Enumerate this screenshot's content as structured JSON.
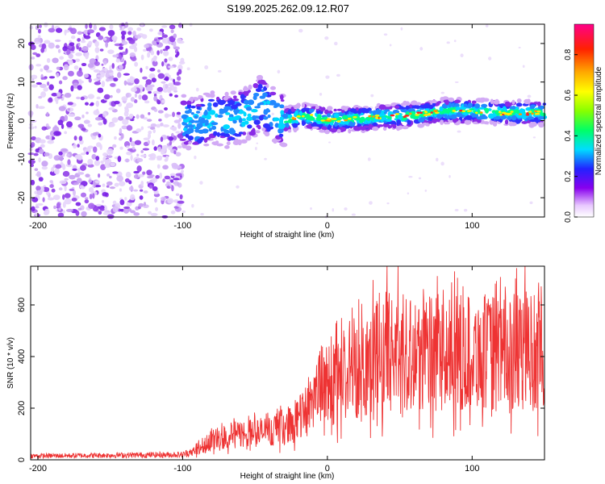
{
  "title": "S199.2025.262.09.12.R07",
  "chart_data": [
    {
      "type": "heatmap",
      "name": "spectrogram",
      "xlabel": "Height of straight line (km)",
      "ylabel": "Frequency (Hz)",
      "xlim": [
        -205,
        150
      ],
      "ylim": [
        -25,
        25
      ],
      "xticks": [
        "-200",
        "-100",
        "0",
        "100"
      ],
      "yticks": [
        "-20",
        "-10",
        "0",
        "10",
        "20"
      ],
      "colorbar": {
        "label": "Normalized spectral amplitude",
        "range": [
          0.0,
          0.95
        ],
        "ticks": [
          "0.0",
          "0.2",
          "0.4",
          "0.6",
          "0.8"
        ]
      },
      "ridge": {
        "x": [
          -100,
          -90,
          -80,
          -70,
          -60,
          -50,
          -45,
          -40,
          -35,
          -30,
          -20,
          -10,
          0,
          20,
          40,
          60,
          80,
          100,
          120,
          150
        ],
        "freq": [
          0,
          -1,
          1,
          0,
          1,
          3,
          5,
          2,
          1,
          0,
          1,
          1,
          0,
          0.5,
          1,
          1.5,
          2.5,
          2.5,
          2,
          2
        ]
      }
    },
    {
      "type": "line",
      "name": "snr",
      "xlabel": "Height of straight line (km)",
      "ylabel": "SNR (10 * v/v)",
      "xlim": [
        -205,
        150
      ],
      "ylim": [
        0,
        750
      ],
      "xticks": [
        "-200",
        "-100",
        "0",
        "100"
      ],
      "yticks": [
        "0",
        "200",
        "400",
        "600"
      ],
      "color": "#ee3333",
      "envelope": {
        "x": [
          -205,
          -100,
          -90,
          -80,
          -60,
          -40,
          -30,
          -20,
          -15,
          -10,
          0,
          10,
          20,
          30,
          40,
          60,
          80,
          100,
          120,
          140,
          150
        ],
        "y": [
          15,
          20,
          40,
          80,
          100,
          110,
          130,
          150,
          200,
          260,
          300,
          310,
          350,
          400,
          420,
          420,
          400,
          420,
          410,
          420,
          400
        ]
      }
    }
  ]
}
